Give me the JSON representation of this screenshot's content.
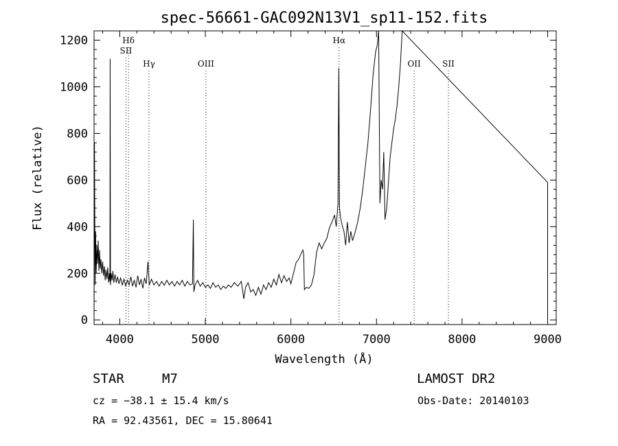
{
  "chart_data": {
    "type": "line",
    "title": "spec-56661-GAC092N13V1_sp11-152.fits",
    "xlabel": "Wavelength (Å)",
    "ylabel": "Flux (relative)",
    "xlim": [
      3700,
      9100
    ],
    "ylim": [
      -20,
      1240
    ],
    "grid": false,
    "x_ticks": [
      4000,
      5000,
      6000,
      7000,
      8000,
      9000
    ],
    "y_ticks": [
      0,
      200,
      400,
      600,
      800,
      1000,
      1200
    ],
    "series": [
      {
        "points": [
          [
            3700,
            0
          ],
          [
            3705,
            760
          ],
          [
            3712,
            150
          ],
          [
            3718,
            380
          ],
          [
            3725,
            200
          ],
          [
            3733,
            320
          ],
          [
            3740,
            240
          ],
          [
            3748,
            340
          ],
          [
            3756,
            210
          ],
          [
            3764,
            300
          ],
          [
            3772,
            220
          ],
          [
            3780,
            260
          ],
          [
            3790,
            200
          ],
          [
            3800,
            250
          ],
          [
            3810,
            190
          ],
          [
            3820,
            230
          ],
          [
            3830,
            170
          ],
          [
            3840,
            215
          ],
          [
            3850,
            175
          ],
          [
            3860,
            225
          ],
          [
            3870,
            160
          ],
          [
            3878,
            200
          ],
          [
            3885,
            165
          ],
          [
            3888,
            1120
          ],
          [
            3892,
            150
          ],
          [
            3900,
            200
          ],
          [
            3910,
            170
          ],
          [
            3920,
            210
          ],
          [
            3930,
            160
          ],
          [
            3945,
            195
          ],
          [
            3960,
            160
          ],
          [
            3975,
            185
          ],
          [
            3990,
            155
          ],
          [
            4010,
            180
          ],
          [
            4030,
            150
          ],
          [
            4050,
            175
          ],
          [
            4070,
            145
          ],
          [
            4090,
            170
          ],
          [
            4110,
            150
          ],
          [
            4130,
            185
          ],
          [
            4150,
            145
          ],
          [
            4170,
            170
          ],
          [
            4190,
            140
          ],
          [
            4210,
            190
          ],
          [
            4230,
            150
          ],
          [
            4250,
            175
          ],
          [
            4270,
            135
          ],
          [
            4290,
            180
          ],
          [
            4310,
            155
          ],
          [
            4330,
            250
          ],
          [
            4345,
            150
          ],
          [
            4370,
            175
          ],
          [
            4400,
            150
          ],
          [
            4430,
            165
          ],
          [
            4460,
            145
          ],
          [
            4490,
            165
          ],
          [
            4520,
            148
          ],
          [
            4550,
            170
          ],
          [
            4580,
            150
          ],
          [
            4610,
            165
          ],
          [
            4640,
            145
          ],
          [
            4670,
            165
          ],
          [
            4700,
            150
          ],
          [
            4730,
            170
          ],
          [
            4760,
            145
          ],
          [
            4790,
            165
          ],
          [
            4820,
            150
          ],
          [
            4850,
            155
          ],
          [
            4860,
            430
          ],
          [
            4866,
            120
          ],
          [
            4880,
            150
          ],
          [
            4910,
            170
          ],
          [
            4940,
            145
          ],
          [
            4970,
            160
          ],
          [
            5000,
            140
          ],
          [
            5030,
            150
          ],
          [
            5060,
            135
          ],
          [
            5090,
            160
          ],
          [
            5120,
            140
          ],
          [
            5150,
            150
          ],
          [
            5180,
            130
          ],
          [
            5210,
            145
          ],
          [
            5240,
            135
          ],
          [
            5270,
            150
          ],
          [
            5300,
            140
          ],
          [
            5340,
            160
          ],
          [
            5380,
            145
          ],
          [
            5420,
            165
          ],
          [
            5450,
            90
          ],
          [
            5470,
            140
          ],
          [
            5500,
            160
          ],
          [
            5530,
            120
          ],
          [
            5560,
            130
          ],
          [
            5590,
            105
          ],
          [
            5620,
            140
          ],
          [
            5650,
            110
          ],
          [
            5680,
            150
          ],
          [
            5710,
            130
          ],
          [
            5740,
            160
          ],
          [
            5770,
            140
          ],
          [
            5800,
            175
          ],
          [
            5830,
            150
          ],
          [
            5860,
            195
          ],
          [
            5890,
            160
          ],
          [
            5920,
            190
          ],
          [
            5950,
            165
          ],
          [
            5980,
            180
          ],
          [
            6000,
            155
          ],
          [
            6030,
            200
          ],
          [
            6060,
            245
          ],
          [
            6090,
            260
          ],
          [
            6120,
            285
          ],
          [
            6140,
            300
          ],
          [
            6150,
            280
          ],
          [
            6158,
            130
          ],
          [
            6180,
            140
          ],
          [
            6210,
            135
          ],
          [
            6240,
            150
          ],
          [
            6270,
            195
          ],
          [
            6300,
            290
          ],
          [
            6330,
            330
          ],
          [
            6360,
            305
          ],
          [
            6390,
            330
          ],
          [
            6420,
            350
          ],
          [
            6450,
            395
          ],
          [
            6480,
            420
          ],
          [
            6510,
            450
          ],
          [
            6530,
            400
          ],
          [
            6550,
            500
          ],
          [
            6560,
            1080
          ],
          [
            6568,
            480
          ],
          [
            6580,
            440
          ],
          [
            6600,
            405
          ],
          [
            6620,
            380
          ],
          [
            6640,
            320
          ],
          [
            6660,
            420
          ],
          [
            6680,
            330
          ],
          [
            6700,
            380
          ],
          [
            6720,
            340
          ],
          [
            6750,
            375
          ],
          [
            6780,
            420
          ],
          [
            6810,
            480
          ],
          [
            6840,
            560
          ],
          [
            6870,
            660
          ],
          [
            6900,
            760
          ],
          [
            6930,
            900
          ],
          [
            6960,
            1050
          ],
          [
            6990,
            1150
          ],
          [
            7010,
            1180
          ],
          [
            7025,
            1250
          ],
          [
            7040,
            500
          ],
          [
            7055,
            600
          ],
          [
            7070,
            560
          ],
          [
            7085,
            720
          ],
          [
            7100,
            430
          ],
          [
            7120,
            480
          ],
          [
            7140,
            590
          ],
          [
            7160,
            700
          ],
          [
            7180,
            760
          ],
          [
            7200,
            820
          ],
          [
            7220,
            860
          ],
          [
            7240,
            920
          ],
          [
            7260,
            1000
          ],
          [
            7280,
            1100
          ],
          [
            7300,
            1250
          ],
          [
            9000,
            590
          ],
          [
            9000,
            0
          ]
        ]
      }
    ],
    "line_annotations": [
      {
        "label": "Hδ",
        "x": 4102,
        "tier": 1
      },
      {
        "label": "SII",
        "x": 4072,
        "tier": 2
      },
      {
        "label": "Hγ",
        "x": 4341,
        "tier": 3
      },
      {
        "label": "OIII",
        "x": 5007,
        "tier": 3
      },
      {
        "label": "Hα",
        "x": 6563,
        "tier": 1
      },
      {
        "label": "OII",
        "x": 7440,
        "tier": 3
      },
      {
        "label": "SII",
        "x": 7840,
        "tier": 3
      }
    ]
  },
  "info": {
    "class": "STAR",
    "subclass": "M7",
    "survey": "LAMOST DR2",
    "cz": "cz = −38.1 ± 15.4 km/s",
    "obs_date": "Obs-Date: 20140103",
    "coords": "RA =  92.43561, DEC =  15.80641"
  }
}
